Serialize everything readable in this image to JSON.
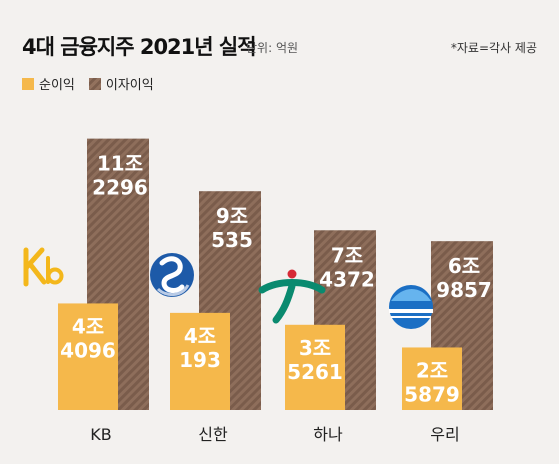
{
  "header": {
    "title": "4대 금융지주 2021년 실적",
    "unit": "단위: 억원",
    "source": "*자료=각사 제공"
  },
  "legend": {
    "net_income": "순이익",
    "interest_income": "이자이익"
  },
  "colors": {
    "net_income": "#f5b84b",
    "interest_income": "#8a6a57",
    "background": "#f3f1ef"
  },
  "logos": [
    "kb-logo-icon",
    "shinhan-logo-icon",
    "hana-logo-icon",
    "woori-logo-icon"
  ],
  "chart_data": {
    "type": "bar",
    "categories": [
      "KB",
      "신한",
      "하나",
      "우리"
    ],
    "series": [
      {
        "name": "순이익",
        "values": [
          44096,
          40193,
          35261,
          25879
        ],
        "labels": [
          [
            "4조",
            "4096"
          ],
          [
            "4조",
            "193"
          ],
          [
            "3조",
            "5261"
          ],
          [
            "2조",
            "5879"
          ]
        ]
      },
      {
        "name": "이자이익",
        "values": [
          112296,
          90535,
          74372,
          69857
        ],
        "labels": [
          [
            "11조",
            "2296"
          ],
          [
            "9조",
            "535"
          ],
          [
            "7조",
            "4372"
          ],
          [
            "6조",
            "9857"
          ]
        ]
      }
    ],
    "ylim": [
      0,
      120000
    ]
  }
}
